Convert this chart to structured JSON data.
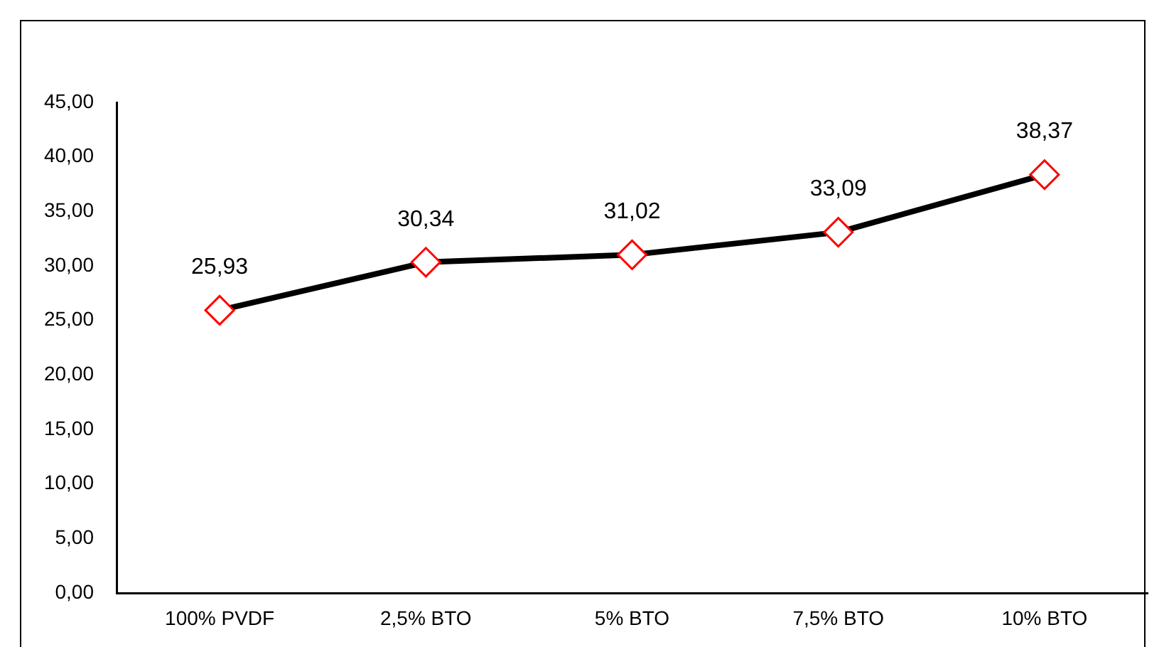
{
  "chart_data": {
    "type": "line",
    "categories": [
      "100% PVDF",
      "2,5% BTO",
      "5% BTO",
      "7,5% BTO",
      "10% BTO"
    ],
    "series": [
      {
        "color": "#000000",
        "values": [
          25.93,
          30.34,
          31.02,
          33.09,
          38.37
        ],
        "value_labels": [
          "25,93",
          "30,34",
          "31,02",
          "33,09",
          "38,37"
        ]
      }
    ],
    "ylim": [
      0,
      45
    ],
    "yticks": [
      {
        "value": 0,
        "label": "0,00"
      },
      {
        "value": 5,
        "label": "5,00"
      },
      {
        "value": 10,
        "label": "10,00"
      },
      {
        "value": 15,
        "label": "15,00"
      },
      {
        "value": 20,
        "label": "20,00"
      },
      {
        "value": 25,
        "label": "25,00"
      },
      {
        "value": 30,
        "label": "30,00"
      },
      {
        "value": 35,
        "label": "35,00"
      },
      {
        "value": 40,
        "label": "40,00"
      },
      {
        "value": 45,
        "label": "45,00"
      }
    ],
    "grid": false,
    "legend": false,
    "marker": "diamond",
    "line_style": "solid"
  }
}
